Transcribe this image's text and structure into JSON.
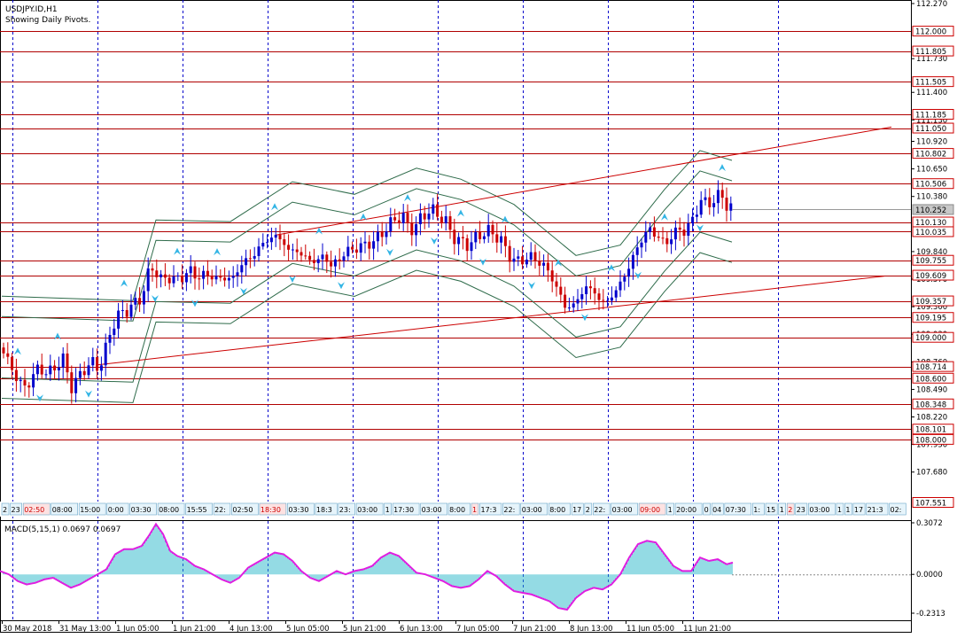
{
  "header": {
    "symbol_line": "USDJPY.ID,H1",
    "subtitle": "Showing Daily Pivots."
  },
  "macd": {
    "label": "MACD(5,15,1) 0.0697 0.0697",
    "ticks": [
      "0.3072",
      "0.0000",
      "-0.2313"
    ],
    "ylim": [
      -0.2313,
      0.3072
    ]
  },
  "colors": {
    "background": "#ffffff",
    "bull": "#0000cc",
    "bear": "#cc0000",
    "pivot_line": "#b00000",
    "trend_line": "#cc0000",
    "band": "#2e6b4a",
    "arrow": "#33b5e5",
    "macd_hist": "#2ab7c8",
    "macd_line": "#e01ee0",
    "grid": "#0000cc",
    "price_tag": "#cc0000"
  },
  "chart_data": {
    "type": "candlestick",
    "symbol": "USDJPY.ID",
    "timeframe": "H1",
    "ylim": [
      107.4,
      112.27
    ],
    "price_ticks": [
      "112.270",
      "111.730",
      "111.400",
      "111.130",
      "110.920",
      "110.650",
      "110.380",
      "109.840",
      "109.570",
      "109.300",
      "109.030",
      "108.760",
      "108.490",
      "108.220",
      "107.950",
      "107.680"
    ],
    "pivot_levels": [
      {
        "value": 112.0,
        "label": "112.000"
      },
      {
        "value": 111.805,
        "label": "111.805"
      },
      {
        "value": 111.505,
        "label": "111.505"
      },
      {
        "value": 111.185,
        "label": "111.185"
      },
      {
        "value": 111.05,
        "label": "111.050"
      },
      {
        "value": 110.802,
        "label": "110.802"
      },
      {
        "value": 110.506,
        "label": "110.506"
      },
      {
        "value": 110.13,
        "label": "110.130"
      },
      {
        "value": 110.035,
        "label": "110.035"
      },
      {
        "value": 109.755,
        "label": "109.755"
      },
      {
        "value": 109.609,
        "label": "109.609"
      },
      {
        "value": 109.357,
        "label": "109.357"
      },
      {
        "value": 109.195,
        "label": "109.195"
      },
      {
        "value": 109.0,
        "label": "109.000"
      },
      {
        "value": 108.714,
        "label": "108.714"
      },
      {
        "value": 108.6,
        "label": "108.600"
      },
      {
        "value": 108.348,
        "label": "108.348"
      },
      {
        "value": 108.101,
        "label": "108.101"
      },
      {
        "value": 108.0,
        "label": "108.000"
      }
    ],
    "current_price": {
      "value": 110.252,
      "label": "110.252"
    },
    "low_tag": {
      "value": 107.551,
      "label": "107.551"
    },
    "x_dates": [
      "30 May 2018",
      "31 May 13:00",
      "1 Jun 05:00",
      "1 Jun 21:00",
      "4 Jun 13:00",
      "5 Jun 05:00",
      "5 Jun 21:00",
      "6 Jun 13:00",
      "7 Jun 05:00",
      "7 Jun 21:00",
      "8 Jun 13:00",
      "11 Jun 05:00",
      "11 Jun 21:00"
    ],
    "session_labels": [
      "2",
      "23",
      "02:50",
      "08:00",
      "15:00",
      "0:00",
      "03:30",
      "08:00",
      "15:55",
      "22:",
      "02:50",
      "18:30",
      "03:30",
      "18:3",
      "23:",
      "03:00",
      "1",
      "17:30",
      "03:00",
      "8:00",
      "1",
      "17:3",
      "22:",
      "03:00",
      "8:00",
      "17",
      "2",
      "22:",
      "03:00",
      "09:00",
      "1",
      "20:00",
      "0",
      "04",
      "07:30",
      "1:",
      "15",
      "1",
      "2",
      "23",
      "03:00",
      "1",
      "1",
      "17",
      "21:3",
      "02:",
      "07:30"
    ],
    "trendlines": [
      {
        "from": {
          "date": "30 May 2018",
          "price": 108.73
        },
        "to": {
          "date": "11 Jun 21:00",
          "price": 109.6
        }
      },
      {
        "from": {
          "date": "5 Jun 05:00",
          "price": 110.0
        },
        "to": {
          "date": "11 Jun 21:00",
          "price": 111.06
        }
      }
    ],
    "price_path": [
      [
        0,
        108.9
      ],
      [
        8,
        108.8
      ],
      [
        18,
        108.6
      ],
      [
        30,
        108.5
      ],
      [
        42,
        108.7
      ],
      [
        52,
        108.65
      ],
      [
        62,
        108.7
      ],
      [
        72,
        108.8
      ],
      [
        80,
        108.5
      ],
      [
        88,
        108.6
      ],
      [
        96,
        108.7
      ],
      [
        104,
        108.75
      ],
      [
        112,
        108.7
      ],
      [
        120,
        108.9
      ],
      [
        126,
        109.1
      ],
      [
        132,
        109.2
      ],
      [
        140,
        109.25
      ],
      [
        148,
        109.3
      ],
      [
        156,
        109.35
      ],
      [
        164,
        109.5
      ],
      [
        170,
        109.7
      ],
      [
        176,
        109.65
      ],
      [
        182,
        109.55
      ],
      [
        190,
        109.6
      ],
      [
        198,
        109.55
      ],
      [
        206,
        109.6
      ],
      [
        214,
        109.65
      ],
      [
        222,
        109.6
      ],
      [
        230,
        109.6
      ],
      [
        238,
        109.62
      ],
      [
        246,
        109.55
      ],
      [
        254,
        109.6
      ],
      [
        262,
        109.55
      ],
      [
        270,
        109.7
      ],
      [
        278,
        109.75
      ],
      [
        286,
        109.8
      ],
      [
        294,
        109.9
      ],
      [
        302,
        109.95
      ],
      [
        310,
        110.0
      ],
      [
        318,
        109.95
      ],
      [
        326,
        109.85
      ],
      [
        334,
        109.85
      ],
      [
        342,
        109.8
      ],
      [
        350,
        109.75
      ],
      [
        358,
        109.75
      ],
      [
        366,
        109.8
      ],
      [
        374,
        109.7
      ],
      [
        382,
        109.75
      ],
      [
        390,
        109.85
      ],
      [
        398,
        109.85
      ],
      [
        406,
        109.9
      ],
      [
        414,
        109.9
      ],
      [
        422,
        109.95
      ],
      [
        430,
        110.0
      ],
      [
        438,
        110.1
      ],
      [
        446,
        110.15
      ],
      [
        454,
        110.2
      ],
      [
        462,
        110.05
      ],
      [
        470,
        110.1
      ],
      [
        478,
        110.2
      ],
      [
        486,
        110.25
      ],
      [
        494,
        110.2
      ],
      [
        502,
        110.15
      ],
      [
        510,
        110.0
      ],
      [
        518,
        109.95
      ],
      [
        526,
        109.9
      ],
      [
        534,
        109.95
      ],
      [
        542,
        110.0
      ],
      [
        550,
        110.05
      ],
      [
        558,
        110.0
      ],
      [
        566,
        109.95
      ],
      [
        574,
        109.8
      ],
      [
        582,
        109.75
      ],
      [
        590,
        109.75
      ],
      [
        598,
        109.8
      ],
      [
        606,
        109.75
      ],
      [
        614,
        109.7
      ],
      [
        622,
        109.6
      ],
      [
        630,
        109.45
      ],
      [
        638,
        109.3
      ],
      [
        646,
        109.3
      ],
      [
        654,
        109.4
      ],
      [
        662,
        109.5
      ],
      [
        670,
        109.45
      ],
      [
        678,
        109.35
      ],
      [
        686,
        109.35
      ],
      [
        694,
        109.45
      ],
      [
        702,
        109.55
      ],
      [
        710,
        109.7
      ],
      [
        718,
        109.85
      ],
      [
        726,
        110.0
      ],
      [
        734,
        110.05
      ],
      [
        742,
        110.0
      ],
      [
        750,
        109.9
      ],
      [
        758,
        110.0
      ],
      [
        766,
        110.05
      ],
      [
        774,
        110.05
      ],
      [
        782,
        110.15
      ],
      [
        790,
        110.35
      ],
      [
        798,
        110.3
      ],
      [
        806,
        110.35
      ],
      [
        814,
        110.4
      ],
      [
        820,
        110.3
      ],
      [
        826,
        110.25
      ]
    ],
    "macd_histogram": [
      [
        0,
        0.02
      ],
      [
        10,
        0.0
      ],
      [
        20,
        -0.04
      ],
      [
        30,
        -0.06
      ],
      [
        40,
        -0.05
      ],
      [
        50,
        -0.03
      ],
      [
        60,
        -0.02
      ],
      [
        70,
        -0.05
      ],
      [
        80,
        -0.08
      ],
      [
        90,
        -0.06
      ],
      [
        100,
        -0.03
      ],
      [
        110,
        0.0
      ],
      [
        120,
        0.03
      ],
      [
        130,
        0.12
      ],
      [
        140,
        0.15
      ],
      [
        150,
        0.15
      ],
      [
        160,
        0.17
      ],
      [
        168,
        0.23
      ],
      [
        176,
        0.3
      ],
      [
        184,
        0.24
      ],
      [
        192,
        0.14
      ],
      [
        200,
        0.11
      ],
      [
        210,
        0.09
      ],
      [
        220,
        0.05
      ],
      [
        230,
        0.03
      ],
      [
        240,
        0.0
      ],
      [
        250,
        -0.03
      ],
      [
        260,
        -0.05
      ],
      [
        270,
        -0.02
      ],
      [
        280,
        0.04
      ],
      [
        290,
        0.07
      ],
      [
        300,
        0.1
      ],
      [
        310,
        0.13
      ],
      [
        320,
        0.12
      ],
      [
        330,
        0.08
      ],
      [
        340,
        0.02
      ],
      [
        350,
        -0.02
      ],
      [
        360,
        -0.04
      ],
      [
        370,
        -0.01
      ],
      [
        380,
        0.02
      ],
      [
        390,
        0.0
      ],
      [
        400,
        0.02
      ],
      [
        410,
        0.03
      ],
      [
        420,
        0.05
      ],
      [
        430,
        0.1
      ],
      [
        440,
        0.13
      ],
      [
        450,
        0.11
      ],
      [
        460,
        0.06
      ],
      [
        470,
        0.01
      ],
      [
        480,
        0.0
      ],
      [
        490,
        -0.02
      ],
      [
        500,
        -0.04
      ],
      [
        510,
        -0.07
      ],
      [
        520,
        -0.08
      ],
      [
        530,
        -0.07
      ],
      [
        540,
        -0.03
      ],
      [
        550,
        0.02
      ],
      [
        560,
        -0.01
      ],
      [
        570,
        -0.06
      ],
      [
        580,
        -0.1
      ],
      [
        590,
        -0.11
      ],
      [
        600,
        -0.12
      ],
      [
        610,
        -0.14
      ],
      [
        620,
        -0.16
      ],
      [
        630,
        -0.2
      ],
      [
        640,
        -0.21
      ],
      [
        650,
        -0.14
      ],
      [
        660,
        -0.1
      ],
      [
        670,
        -0.08
      ],
      [
        680,
        -0.09
      ],
      [
        690,
        -0.06
      ],
      [
        700,
        0.0
      ],
      [
        710,
        0.1
      ],
      [
        720,
        0.18
      ],
      [
        730,
        0.2
      ],
      [
        740,
        0.19
      ],
      [
        750,
        0.12
      ],
      [
        760,
        0.05
      ],
      [
        770,
        0.02
      ],
      [
        780,
        0.02
      ],
      [
        790,
        0.1
      ],
      [
        800,
        0.08
      ],
      [
        810,
        0.09
      ],
      [
        820,
        0.06
      ],
      [
        827,
        0.07
      ]
    ]
  }
}
